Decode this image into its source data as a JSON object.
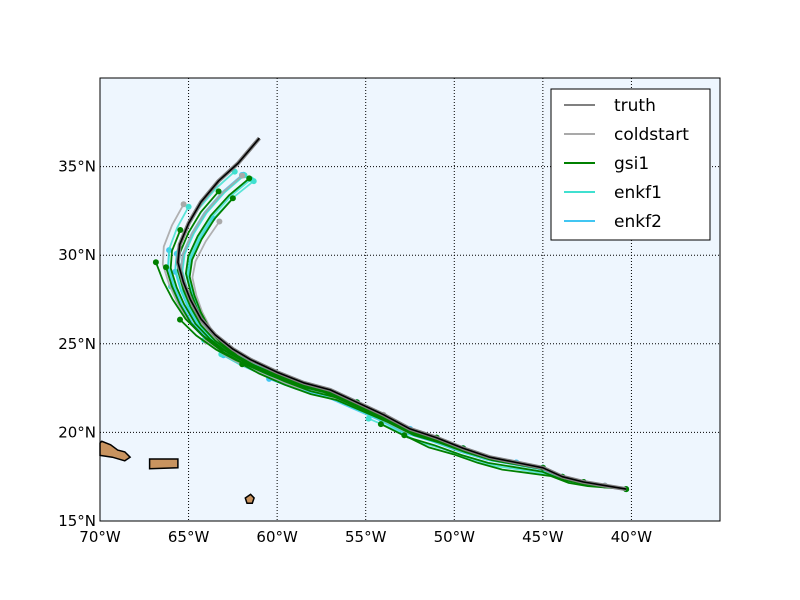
{
  "chart_data": {
    "type": "map-tracks",
    "projection": "equirectangular",
    "lon_range": [
      -70,
      -35
    ],
    "lat_range": [
      15,
      40
    ],
    "grid": true,
    "x_tick_labels": [
      {
        "lon": -70,
        "label": "70°W"
      },
      {
        "lon": -65,
        "label": "65°W"
      },
      {
        "lon": -60,
        "label": "60°W"
      },
      {
        "lon": -55,
        "label": "55°W"
      },
      {
        "lon": -50,
        "label": "50°W"
      },
      {
        "lon": -45,
        "label": "45°W"
      },
      {
        "lon": -40,
        "label": "40°W"
      }
    ],
    "y_tick_labels": [
      {
        "lat": 15,
        "label": "15°N"
      },
      {
        "lat": 20,
        "label": "20°N"
      },
      {
        "lat": 25,
        "label": "25°N"
      },
      {
        "lat": 30,
        "label": "30°N"
      },
      {
        "lat": 35,
        "label": "35°N"
      }
    ],
    "legend_position": "top-right",
    "legend": [
      {
        "label": "truth",
        "color": "#808080"
      },
      {
        "label": "coldstart",
        "color": "#a9a9a9"
      },
      {
        "label": "gsi1",
        "color": "#008000"
      },
      {
        "label": "enkf1",
        "color": "#40e0d0"
      },
      {
        "label": "enkf2",
        "color": "#41c6f2"
      }
    ],
    "colors": {
      "ocean": "#eef6fe",
      "land": "#c8935f",
      "truth_center": "#000000"
    },
    "truth_track": [
      [
        -40.3,
        16.8
      ],
      [
        -41.5,
        17.0
      ],
      [
        -42.7,
        17.2
      ],
      [
        -43.9,
        17.5
      ],
      [
        -45.0,
        18.0
      ],
      [
        -46.5,
        18.3
      ],
      [
        -48.0,
        18.6
      ],
      [
        -49.5,
        19.1
      ],
      [
        -51.0,
        19.7
      ],
      [
        -52.5,
        20.2
      ],
      [
        -54.0,
        21.0
      ],
      [
        -55.5,
        21.7
      ],
      [
        -57.0,
        22.4
      ],
      [
        -58.5,
        22.8
      ],
      [
        -60.0,
        23.4
      ],
      [
        -61.5,
        24.1
      ],
      [
        -62.5,
        24.7
      ],
      [
        -63.5,
        25.5
      ],
      [
        -64.3,
        26.4
      ],
      [
        -64.9,
        27.5
      ],
      [
        -65.3,
        28.5
      ],
      [
        -65.6,
        29.6
      ],
      [
        -65.5,
        30.6
      ],
      [
        -65.0,
        31.8
      ],
      [
        -64.3,
        33.0
      ],
      [
        -63.3,
        34.2
      ],
      [
        -62.2,
        35.2
      ],
      [
        -61.0,
        36.6
      ]
    ],
    "land": [
      {
        "name": "hispaniola",
        "coords": [
          [
            -70.0,
            18.7
          ],
          [
            -69.3,
            18.6
          ],
          [
            -68.6,
            18.4
          ],
          [
            -68.3,
            18.6
          ],
          [
            -68.6,
            18.9
          ],
          [
            -69.0,
            19.0
          ],
          [
            -69.4,
            19.3
          ],
          [
            -69.9,
            19.5
          ],
          [
            -70.0,
            19.4
          ]
        ]
      },
      {
        "name": "puerto-rico",
        "coords": [
          [
            -67.2,
            18.5
          ],
          [
            -65.6,
            18.5
          ],
          [
            -65.6,
            18.0
          ],
          [
            -67.2,
            17.95
          ]
        ]
      },
      {
        "name": "guadeloupe",
        "coords": [
          [
            -61.8,
            16.3
          ],
          [
            -61.5,
            16.5
          ],
          [
            -61.3,
            16.3
          ],
          [
            -61.4,
            16.0
          ],
          [
            -61.7,
            16.0
          ]
        ]
      }
    ]
  }
}
